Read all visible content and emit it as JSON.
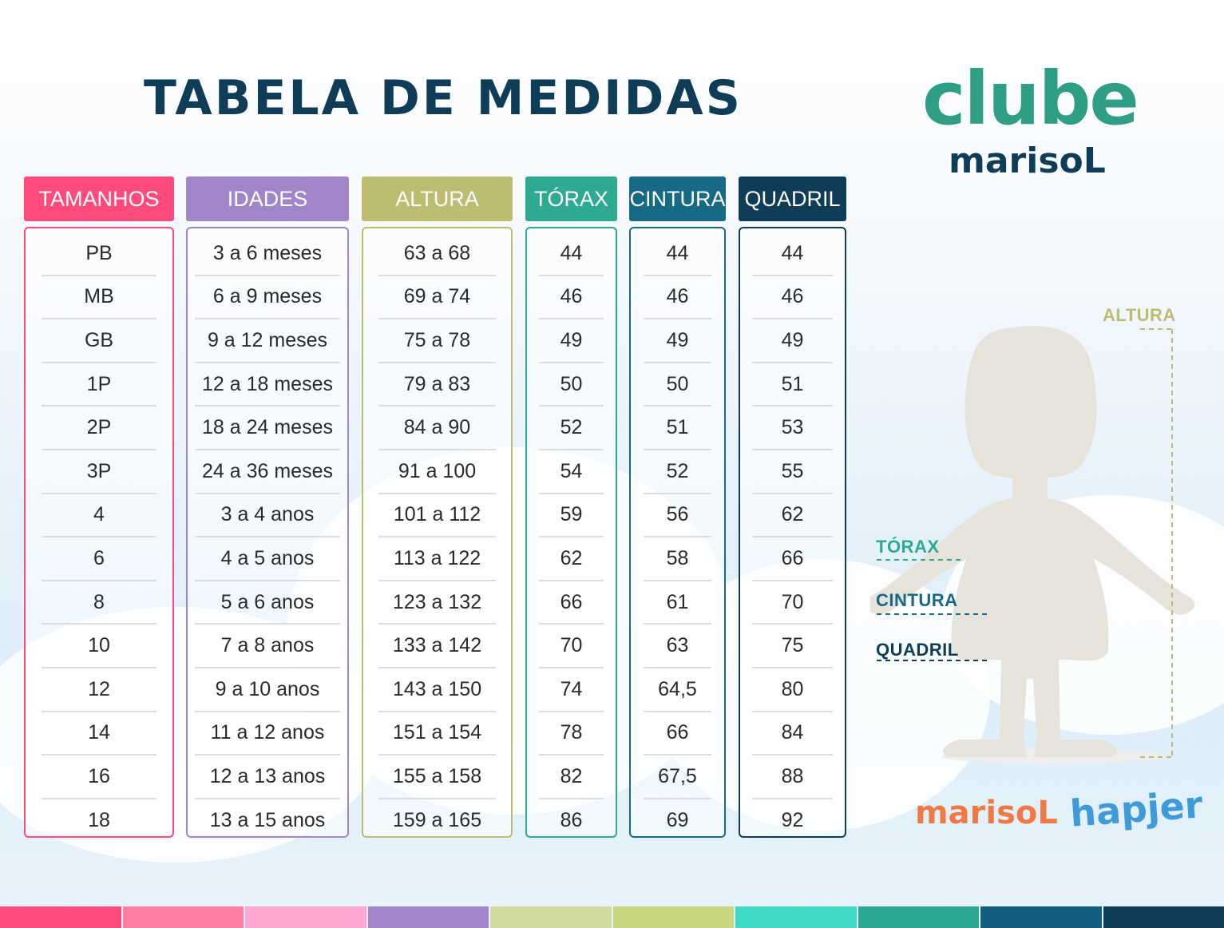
{
  "title": "TABELA DE MEDIDAS",
  "logo": {
    "line1": "clube",
    "line2": "marisoL"
  },
  "columns": [
    {
      "header": "TAMANHOS",
      "color": "#ff4b7c",
      "values": [
        "PB",
        "MB",
        "GB",
        "1P",
        "2P",
        "3P",
        "4",
        "6",
        "8",
        "10",
        "12",
        "14",
        "16",
        "18"
      ]
    },
    {
      "header": "IDADES",
      "color": "#a085c9",
      "values": [
        "3 a 6 meses",
        "6 a 9 meses",
        "9 a 12 meses",
        "12 a 18 meses",
        "18 a 24 meses",
        "24 a 36 meses",
        "3 a 4 anos",
        "4 a 5 anos",
        "5 a 6 anos",
        "7 a 8 anos",
        "9 a 10 anos",
        "11 a 12 anos",
        "12 a 13 anos",
        "13 a 15 anos"
      ]
    },
    {
      "header": "ALTURA",
      "color": "#bcbd70",
      "values": [
        "63 a 68",
        "69 a 74",
        "75 a 78",
        "79 a 83",
        "84 a 90",
        "91 a 100",
        "101 a 112",
        "113 a 122",
        "123 a 132",
        "133 a 142",
        "143 a 150",
        "151 a 154",
        "155 a 158",
        "159 a 165"
      ]
    },
    {
      "header": "TÓRAX",
      "color": "#2eaa92",
      "values": [
        "44",
        "46",
        "49",
        "50",
        "52",
        "54",
        "59",
        "62",
        "66",
        "70",
        "74",
        "78",
        "82",
        "86"
      ]
    },
    {
      "header": "CINTURA",
      "color": "#166a86",
      "values": [
        "44",
        "46",
        "49",
        "50",
        "51",
        "52",
        "56",
        "58",
        "61",
        "63",
        "64,5",
        "66",
        "67,5",
        "69"
      ]
    },
    {
      "header": "QUADRIL",
      "color": "#0f3d57",
      "values": [
        "44",
        "46",
        "49",
        "51",
        "53",
        "55",
        "62",
        "66",
        "70",
        "75",
        "80",
        "84",
        "88",
        "92"
      ]
    }
  ],
  "figure": {
    "altura": {
      "text": "ALTURA",
      "color": "#bcbd70"
    },
    "torax": {
      "text": "TÓRAX",
      "color": "#2eaa92"
    },
    "cintura": {
      "text": "CINTURA",
      "color": "#166a86"
    },
    "quadril": {
      "text": "QUADRIL",
      "color": "#0f3d57"
    }
  },
  "brands": {
    "marisol": "marisoL",
    "hapier": "hapjer"
  },
  "stripe_colors": [
    "#ff4b7c",
    "#ff7fa2",
    "#ffa6d3",
    "#a085c9",
    "#d4dba0",
    "#c6d77d",
    "#3fdcc5",
    "#2aa891",
    "#125e7e",
    "#0f3d57"
  ]
}
